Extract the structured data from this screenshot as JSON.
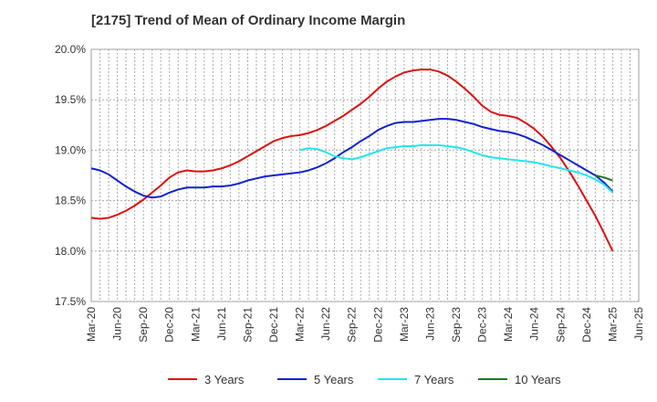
{
  "chart_data": {
    "type": "line",
    "title": "[2175]  Trend of Mean of Ordinary Income Margin",
    "xlabel": "",
    "ylabel": "",
    "ylim": [
      17.5,
      20.0
    ],
    "y_ticks": [
      "20.0%",
      "19.5%",
      "19.0%",
      "18.5%",
      "18.0%",
      "17.5%"
    ],
    "y_tick_values": [
      20.0,
      19.5,
      19.0,
      18.5,
      18.0,
      17.5
    ],
    "x_ticks": [
      "Mar-20",
      "Jun-20",
      "Sep-20",
      "Dec-20",
      "Mar-21",
      "Jun-21",
      "Sep-21",
      "Dec-21",
      "Mar-22",
      "Jun-22",
      "Sep-22",
      "Dec-22",
      "Mar-23",
      "Jun-23",
      "Sep-23",
      "Dec-23",
      "Mar-24",
      "Jun-24",
      "Sep-24",
      "Dec-24",
      "Mar-25",
      "Jun-25"
    ],
    "grid": true,
    "legend_position": "bottom",
    "series": [
      {
        "name": "3 Years",
        "color": "#dd1111",
        "x": [
          "Mar-20",
          "Apr-20",
          "May-20",
          "Jun-20",
          "Jul-20",
          "Aug-20",
          "Sep-20",
          "Oct-20",
          "Nov-20",
          "Dec-20",
          "Jan-21",
          "Feb-21",
          "Mar-21",
          "Apr-21",
          "May-21",
          "Jun-21",
          "Jul-21",
          "Aug-21",
          "Sep-21",
          "Oct-21",
          "Nov-21",
          "Dec-21",
          "Jan-22",
          "Feb-22",
          "Mar-22",
          "Apr-22",
          "May-22",
          "Jun-22",
          "Jul-22",
          "Aug-22",
          "Sep-22",
          "Oct-22",
          "Nov-22",
          "Dec-22",
          "Jan-23",
          "Feb-23",
          "Mar-23",
          "Apr-23",
          "May-23",
          "Jun-23",
          "Jul-23",
          "Aug-23",
          "Sep-23",
          "Oct-23",
          "Nov-23",
          "Dec-23",
          "Jan-24",
          "Feb-24",
          "Mar-24",
          "Apr-24",
          "May-24",
          "Jun-24",
          "Jul-24",
          "Aug-24",
          "Sep-24",
          "Oct-24",
          "Nov-24",
          "Dec-24",
          "Jan-25",
          "Feb-25",
          "Mar-25"
        ],
        "values": [
          18.33,
          18.32,
          18.33,
          18.36,
          18.4,
          18.45,
          18.51,
          18.58,
          18.65,
          18.73,
          18.78,
          18.8,
          18.79,
          18.79,
          18.8,
          18.82,
          18.85,
          18.89,
          18.94,
          18.99,
          19.04,
          19.09,
          19.12,
          19.14,
          19.15,
          19.17,
          19.2,
          19.24,
          19.29,
          19.34,
          19.4,
          19.46,
          19.53,
          19.61,
          19.68,
          19.73,
          19.77,
          19.79,
          19.8,
          19.8,
          19.78,
          19.74,
          19.68,
          19.61,
          19.53,
          19.44,
          19.38,
          19.35,
          19.34,
          19.32,
          19.27,
          19.21,
          19.13,
          19.03,
          18.92,
          18.79,
          18.65,
          18.5,
          18.35,
          18.18,
          18.0
        ]
      },
      {
        "name": "5 Years",
        "color": "#1122cc",
        "x": [
          "Mar-20",
          "Apr-20",
          "May-20",
          "Jun-20",
          "Jul-20",
          "Aug-20",
          "Sep-20",
          "Oct-20",
          "Nov-20",
          "Dec-20",
          "Jan-21",
          "Feb-21",
          "Mar-21",
          "Apr-21",
          "May-21",
          "Jun-21",
          "Jul-21",
          "Aug-21",
          "Sep-21",
          "Oct-21",
          "Nov-21",
          "Dec-21",
          "Jan-22",
          "Feb-22",
          "Mar-22",
          "Apr-22",
          "May-22",
          "Jun-22",
          "Jul-22",
          "Aug-22",
          "Sep-22",
          "Oct-22",
          "Nov-22",
          "Dec-22",
          "Jan-23",
          "Feb-23",
          "Mar-23",
          "Apr-23",
          "May-23",
          "Jun-23",
          "Jul-23",
          "Aug-23",
          "Sep-23",
          "Oct-23",
          "Nov-23",
          "Dec-23",
          "Jan-24",
          "Feb-24",
          "Mar-24",
          "Apr-24",
          "May-24",
          "Jun-24",
          "Jul-24",
          "Aug-24",
          "Sep-24",
          "Oct-24",
          "Nov-24",
          "Dec-24",
          "Jan-25",
          "Feb-25",
          "Mar-25"
        ],
        "values": [
          18.82,
          18.8,
          18.76,
          18.7,
          18.64,
          18.59,
          18.55,
          18.53,
          18.54,
          18.58,
          18.61,
          18.63,
          18.63,
          18.63,
          18.64,
          18.64,
          18.65,
          18.67,
          18.7,
          18.72,
          18.74,
          18.75,
          18.76,
          18.77,
          18.78,
          18.8,
          18.83,
          18.87,
          18.92,
          18.98,
          19.03,
          19.09,
          19.14,
          19.2,
          19.24,
          19.27,
          19.28,
          19.28,
          19.29,
          19.3,
          19.31,
          19.31,
          19.3,
          19.28,
          19.26,
          19.23,
          19.21,
          19.19,
          19.18,
          19.16,
          19.13,
          19.09,
          19.05,
          19.0,
          18.95,
          18.9,
          18.85,
          18.8,
          18.75,
          18.68,
          18.59
        ]
      },
      {
        "name": "7 Years",
        "color": "#22e5ee",
        "x": [
          "Mar-22",
          "Apr-22",
          "May-22",
          "Jun-22",
          "Jul-22",
          "Aug-22",
          "Sep-22",
          "Oct-22",
          "Nov-22",
          "Dec-22",
          "Jan-23",
          "Feb-23",
          "Mar-23",
          "Apr-23",
          "May-23",
          "Jun-23",
          "Jul-23",
          "Aug-23",
          "Sep-23",
          "Oct-23",
          "Nov-23",
          "Dec-23",
          "Jan-24",
          "Feb-24",
          "Mar-24",
          "Apr-24",
          "May-24",
          "Jun-24",
          "Jul-24",
          "Aug-24",
          "Sep-24",
          "Oct-24",
          "Nov-24",
          "Dec-24",
          "Jan-25",
          "Feb-25",
          "Mar-25"
        ],
        "values": [
          19.0,
          19.02,
          19.01,
          18.98,
          18.94,
          18.92,
          18.91,
          18.93,
          18.96,
          18.99,
          19.02,
          19.03,
          19.04,
          19.04,
          19.05,
          19.05,
          19.05,
          19.04,
          19.03,
          19.01,
          18.98,
          18.95,
          18.93,
          18.92,
          18.91,
          18.9,
          18.89,
          18.88,
          18.86,
          18.84,
          18.82,
          18.8,
          18.78,
          18.75,
          18.71,
          18.66,
          18.58
        ]
      },
      {
        "name": "10 Years",
        "color": "#227722",
        "x": [
          "Jan-25",
          "Feb-25",
          "Mar-25"
        ],
        "values": [
          18.75,
          18.73,
          18.7
        ]
      }
    ]
  }
}
